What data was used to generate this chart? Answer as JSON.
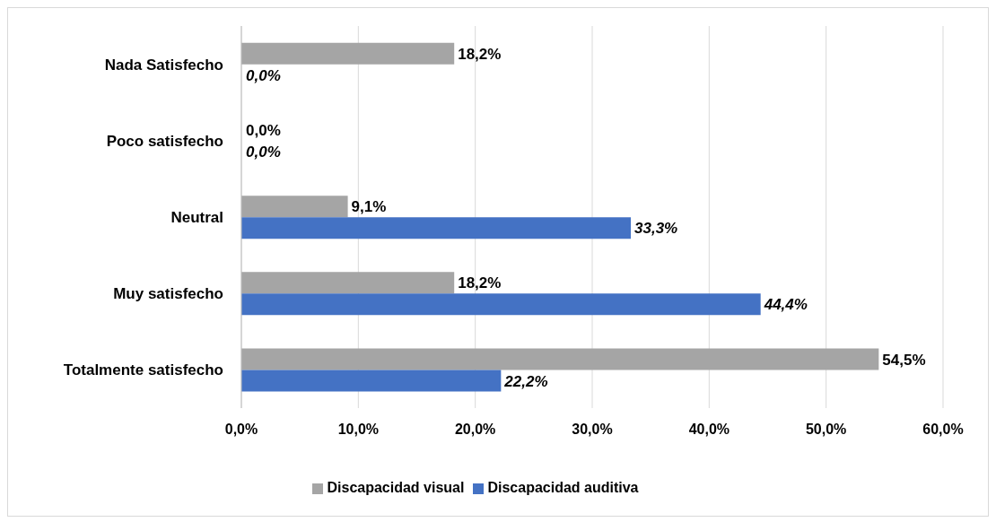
{
  "chart_data": {
    "type": "bar",
    "orientation": "horizontal",
    "categories": [
      "Nada Satisfecho",
      "Poco satisfecho",
      "Neutral",
      "Muy satisfecho",
      "Totalmente satisfecho"
    ],
    "series": [
      {
        "name": "Discapacidad visual",
        "color": "#a5a5a5",
        "values": [
          18.2,
          0,
          9.1,
          18.2,
          54.5
        ],
        "value_labels": [
          "18,2%",
          "0,0%",
          "9,1%",
          "18,2%",
          "54,5%"
        ]
      },
      {
        "name": "Discapacidad auditiva",
        "color": "#4472c4",
        "values": [
          0,
          0,
          33.3,
          44.4,
          22.2
        ],
        "value_labels": [
          "0,0%",
          "0,0%",
          "33,3%",
          "44,4%",
          "22,2%"
        ]
      }
    ],
    "xlim": [
      0,
      60
    ],
    "xticks": [
      {
        "value": 0,
        "label": "0,0%"
      },
      {
        "value": 10,
        "label": "10,0%"
      },
      {
        "value": 20,
        "label": "20,0%"
      },
      {
        "value": 30,
        "label": "30,0%"
      },
      {
        "value": 40,
        "label": "40,0%"
      },
      {
        "value": 50,
        "label": "50,0%"
      },
      {
        "value": 60,
        "label": "60,0%"
      }
    ],
    "grid": "x",
    "legend": "bottom"
  }
}
